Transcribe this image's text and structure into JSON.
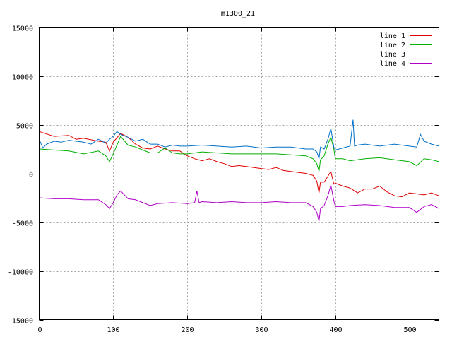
{
  "colors": {
    "background": "#ffffff",
    "axis": "#000000",
    "grid": "#a0a0a0",
    "line1": "#e00000",
    "line2": "#00b000",
    "line3": "#0070c8",
    "line4": "#b000c8"
  },
  "chart_data": {
    "type": "line",
    "title": "m1300_21",
    "xlabel": "",
    "ylabel": "",
    "xlim": [
      0,
      540
    ],
    "ylim": [
      -15000,
      15000
    ],
    "xticks": [
      0,
      100,
      200,
      300,
      400,
      500
    ],
    "yticks": [
      -15000,
      -10000,
      -5000,
      0,
      5000,
      10000,
      15000
    ],
    "grid": true,
    "legend_position": "top-right",
    "series": [
      {
        "name": "line 1",
        "color": "#e00000",
        "x": [
          0,
          20,
          40,
          50,
          60,
          80,
          90,
          95,
          100,
          110,
          120,
          130,
          140,
          150,
          160,
          170,
          180,
          190,
          200,
          210,
          220,
          230,
          240,
          250,
          260,
          270,
          280,
          290,
          300,
          310,
          320,
          330,
          340,
          350,
          360,
          370,
          375,
          378,
          380,
          385,
          390,
          394,
          398,
          400,
          410,
          420,
          430,
          440,
          450,
          460,
          470,
          480,
          490,
          500,
          510,
          520,
          530,
          540
        ],
        "y": [
          4300,
          3800,
          3900,
          3500,
          3600,
          3300,
          3200,
          2300,
          3200,
          4100,
          3700,
          3000,
          2600,
          2500,
          2800,
          2500,
          2300,
          2300,
          1800,
          1500,
          1300,
          1500,
          1200,
          1000,
          700,
          800,
          700,
          600,
          500,
          400,
          600,
          300,
          200,
          100,
          0,
          -200,
          -800,
          -2000,
          -900,
          -900,
          -300,
          200,
          -1100,
          -1000,
          -1300,
          -1500,
          -2000,
          -1600,
          -1600,
          -1300,
          -1900,
          -2300,
          -2400,
          -2000,
          -2100,
          -2200,
          -2000,
          -2300
        ]
      },
      {
        "name": "line 2",
        "color": "#00b000",
        "x": [
          0,
          20,
          40,
          60,
          80,
          90,
          95,
          100,
          110,
          120,
          130,
          140,
          150,
          160,
          170,
          180,
          190,
          200,
          220,
          240,
          260,
          280,
          300,
          320,
          340,
          360,
          370,
          375,
          378,
          380,
          385,
          390,
          394,
          398,
          400,
          410,
          420,
          440,
          460,
          480,
          500,
          510,
          520,
          530,
          540
        ],
        "y": [
          2500,
          2400,
          2300,
          2000,
          2300,
          1800,
          1200,
          2000,
          3800,
          2900,
          2700,
          2400,
          2100,
          2100,
          2600,
          2100,
          2000,
          2000,
          2200,
          2100,
          2000,
          2000,
          2000,
          2000,
          1900,
          1800,
          1500,
          1000,
          200,
          1400,
          1800,
          3000,
          3700,
          2500,
          1500,
          1500,
          1300,
          1500,
          1600,
          1400,
          1200,
          800,
          1500,
          1400,
          1200
        ]
      },
      {
        "name": "line 3",
        "color": "#0070c8",
        "x": [
          0,
          5,
          10,
          20,
          30,
          40,
          50,
          60,
          70,
          80,
          90,
          95,
          100,
          105,
          110,
          120,
          130,
          140,
          150,
          160,
          170,
          180,
          190,
          200,
          220,
          240,
          260,
          280,
          300,
          320,
          340,
          360,
          370,
          375,
          378,
          380,
          385,
          390,
          394,
          398,
          400,
          410,
          420,
          424,
          426,
          430,
          440,
          460,
          480,
          500,
          510,
          515,
          520,
          530,
          540
        ],
        "y": [
          3500,
          2600,
          3000,
          3300,
          3200,
          3400,
          3300,
          3200,
          3000,
          3500,
          3100,
          3500,
          3800,
          4300,
          4000,
          3700,
          3300,
          3500,
          3000,
          3000,
          2700,
          2900,
          2800,
          2800,
          2900,
          2800,
          2700,
          2800,
          2600,
          2700,
          2700,
          2500,
          2500,
          2200,
          1500,
          2700,
          2500,
          3500,
          4600,
          2700,
          2400,
          2600,
          2800,
          5500,
          2800,
          2900,
          3000,
          2800,
          3000,
          2800,
          2700,
          4000,
          3300,
          3000,
          2800
        ]
      },
      {
        "name": "line 4",
        "color": "#b000c8",
        "x": [
          0,
          20,
          40,
          60,
          80,
          90,
          95,
          100,
          105,
          110,
          120,
          130,
          140,
          150,
          160,
          180,
          200,
          210,
          213,
          216,
          220,
          240,
          260,
          280,
          300,
          320,
          340,
          360,
          370,
          375,
          378,
          380,
          385,
          390,
          394,
          398,
          400,
          410,
          420,
          440,
          460,
          480,
          500,
          510,
          520,
          530,
          540
        ],
        "y": [
          -2500,
          -2600,
          -2600,
          -2700,
          -2700,
          -3200,
          -3600,
          -3000,
          -2200,
          -1800,
          -2600,
          -2700,
          -3000,
          -3300,
          -3100,
          -3000,
          -3100,
          -3000,
          -1800,
          -3000,
          -2900,
          -3000,
          -2900,
          -3000,
          -3000,
          -2900,
          -3000,
          -3000,
          -3400,
          -4000,
          -4900,
          -3600,
          -3300,
          -2300,
          -1200,
          -2800,
          -3400,
          -3400,
          -3300,
          -3200,
          -3300,
          -3500,
          -3500,
          -4000,
          -3400,
          -3200,
          -3600
        ]
      }
    ]
  }
}
